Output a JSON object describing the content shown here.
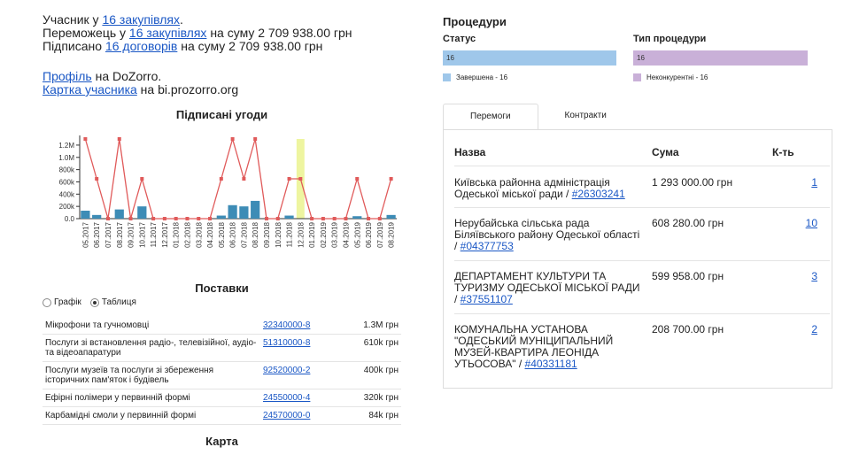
{
  "stats": {
    "participant_prefix": "Учасник у ",
    "participant_link": "16 закупівлях",
    "participant_suffix": ".",
    "winner_prefix": "Переможець у ",
    "winner_link": "16 закупівлях",
    "winner_suffix": " на суму 2 709 938.00 грн",
    "signed_prefix": "Підписано ",
    "signed_link": "16 договорів",
    "signed_suffix": " на суму 2 709 938.00 грн"
  },
  "links": {
    "profile_link": "Профіль",
    "profile_suffix": " на DoZorro.",
    "card_link": "Картка учасника",
    "card_suffix": " на bi.prozorro.org"
  },
  "chart_title": "Підписані угоди",
  "chart_data": {
    "type": "bar",
    "title": "Підписані угоди",
    "categories": [
      "05.2017",
      "06.2017",
      "07.2017",
      "08.2017",
      "09.2017",
      "10.2017",
      "11.2017",
      "12.2017",
      "01.2018",
      "02.2018",
      "03.2018",
      "04.2018",
      "05.2018",
      "06.2018",
      "07.2018",
      "08.2018",
      "09.2018",
      "10.2018",
      "11.2018",
      "12.2018",
      "01.2019",
      "02.2019",
      "03.2019",
      "04.2019",
      "05.2019",
      "06.2019",
      "07.2019",
      "08.2019"
    ],
    "series": [
      {
        "values": [
          130000,
          60000,
          0,
          150000,
          0,
          200000,
          0,
          0,
          0,
          0,
          0,
          0,
          50000,
          220000,
          200000,
          290000,
          0,
          0,
          50000,
          0,
          0,
          0,
          0,
          0,
          40000,
          0,
          0,
          60000
        ]
      },
      {
        "values": [
          1300000,
          650000,
          0,
          1300000,
          0,
          650000,
          0,
          0,
          0,
          0,
          0,
          0,
          650000,
          1300000,
          650000,
          1300000,
          0,
          0,
          650000,
          650000,
          0,
          0,
          0,
          0,
          650000,
          0,
          0,
          650000
        ]
      }
    ],
    "yticks": [
      "0.0",
      "200k",
      "400k",
      "600k",
      "800k",
      "1.0M",
      "1.2M"
    ],
    "ylim": [
      0,
      1300000
    ],
    "highlight_index": 19,
    "colors": {
      "bar": "#3d8cb6",
      "line": "#e05a5a",
      "highlight": "#eef5a0"
    }
  },
  "supplies": {
    "title": "Поставки",
    "radio_chart": "Графік",
    "radio_table": "Таблиця",
    "rows": [
      {
        "name": "Мікрофони та гучномовці",
        "cpv": "32340000-8",
        "amount": "1.3M грн"
      },
      {
        "name": "Послуги зі встановлення радіо-, телевізійної, аудіо- та відеоапаратури",
        "cpv": "51310000-8",
        "amount": "610k грн"
      },
      {
        "name": "Послуги музеїв та послуги зі збереження історичних пам'яток і будівель",
        "cpv": "92520000-2",
        "amount": "400k грн"
      },
      {
        "name": "Ефірні полімери у первинній формі",
        "cpv": "24550000-4",
        "amount": "320k грн"
      },
      {
        "name": "Карбамідні смоли у первинній формі",
        "cpv": "24570000-0",
        "amount": "84k грн"
      }
    ]
  },
  "map_title": "Карта",
  "procedures": {
    "title": "Процедури",
    "status_label": "Статус",
    "type_label": "Тип процедури",
    "status_bar": "16",
    "type_bar": "16",
    "status_legend": "Завершена - 16",
    "type_legend": "Неконкурентні - 16",
    "colors": {
      "status": "#9fc7ea",
      "type": "#c9b0d8"
    }
  },
  "tabs": {
    "wins": "Перемоги",
    "contracts": "Контракти"
  },
  "wins_table": {
    "headers": {
      "name": "Назва",
      "sum": "Сума",
      "count": "К-ть"
    },
    "rows": [
      {
        "name": "Київська районна адміністрація Одеської міської ради / ",
        "code": "#26303241",
        "sum": "1 293 000.00 грн",
        "count": "1"
      },
      {
        "name": "Нерубайська сільська рада Біляївського району Одеської області / ",
        "code": "#04377753",
        "sum": "608 280.00 грн",
        "count": "10"
      },
      {
        "name": "ДЕПАРТАМЕНТ КУЛЬТУРИ ТА ТУРИЗМУ ОДЕСЬКОЇ МІСЬКОЇ РАДИ / ",
        "code": "#37551107",
        "sum": "599 958.00 грн",
        "count": "3"
      },
      {
        "name": "КОМУНАЛЬНА УСТАНОВА \"ОДЕСЬКИЙ МУНІЦИПАЛЬНИЙ МУЗЕЙ-КВАРТИРА ЛЕОНІДА УТЬОСОВА\" / ",
        "code": "#40331181",
        "sum": "208 700.00 грн",
        "count": "2"
      }
    ]
  }
}
